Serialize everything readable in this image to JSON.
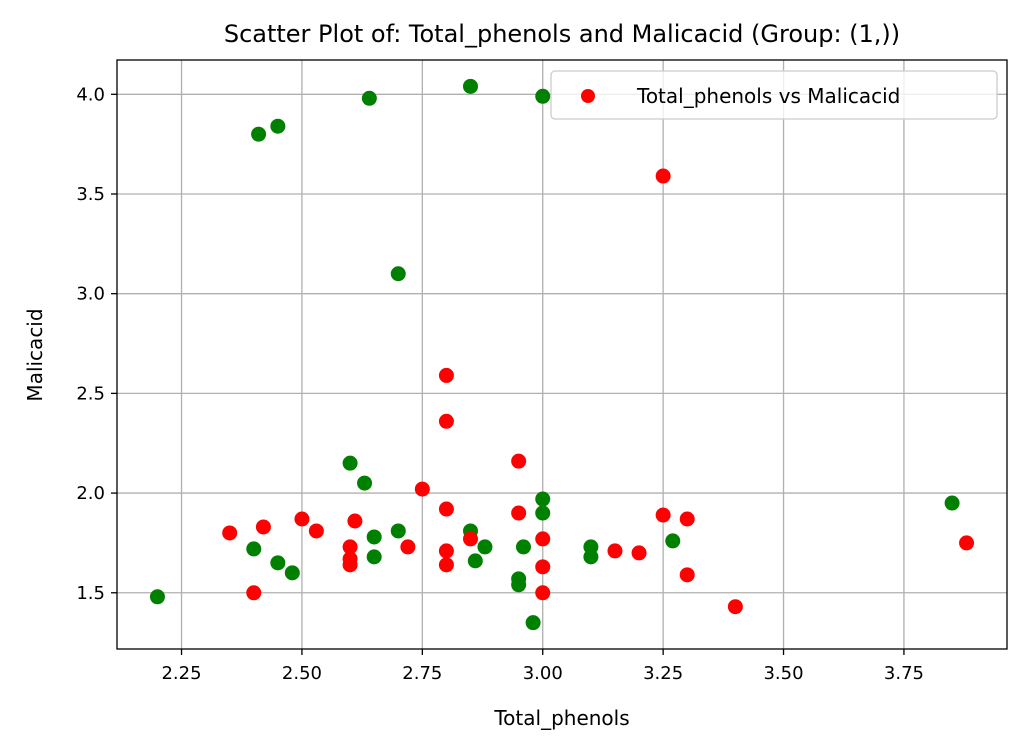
{
  "chart_data": {
    "type": "scatter",
    "title": "Scatter Plot of: Total_phenols and Malicacid (Group: (1,))",
    "xlabel": "Total_phenols",
    "ylabel": "Malicacid",
    "xlim": [
      2.116,
      3.964
    ],
    "ylim": [
      1.218,
      4.172
    ],
    "xticks": [
      "2.25",
      "2.50",
      "2.75",
      "3.00",
      "3.25",
      "3.50",
      "3.75"
    ],
    "xtick_values": [
      2.25,
      2.5,
      2.75,
      3.0,
      3.25,
      3.5,
      3.75
    ],
    "yticks": [
      "1.5",
      "2.0",
      "2.5",
      "3.0",
      "3.5",
      "4.0"
    ],
    "ytick_values": [
      1.5,
      2.0,
      2.5,
      3.0,
      3.5,
      4.0
    ],
    "grid": true,
    "legend": {
      "position": "top-right",
      "entries": [
        "Total_phenols vs Malicacid"
      ]
    },
    "series": [
      {
        "color": "#008000",
        "points": [
          [
            2.2,
            1.48
          ],
          [
            2.4,
            1.72
          ],
          [
            2.41,
            3.8
          ],
          [
            2.45,
            3.84
          ],
          [
            2.45,
            1.65
          ],
          [
            2.48,
            1.6
          ],
          [
            2.6,
            2.15
          ],
          [
            2.63,
            2.05
          ],
          [
            2.64,
            3.98
          ],
          [
            2.65,
            1.78
          ],
          [
            2.65,
            1.68
          ],
          [
            2.7,
            3.1
          ],
          [
            2.7,
            1.81
          ],
          [
            2.85,
            4.04
          ],
          [
            2.85,
            1.81
          ],
          [
            2.86,
            1.66
          ],
          [
            2.88,
            1.73
          ],
          [
            2.95,
            1.57
          ],
          [
            2.95,
            1.54
          ],
          [
            2.96,
            1.73
          ],
          [
            2.98,
            1.35
          ],
          [
            3.0,
            3.99
          ],
          [
            3.0,
            1.97
          ],
          [
            3.0,
            1.9
          ],
          [
            3.1,
            1.73
          ],
          [
            3.1,
            1.68
          ],
          [
            3.27,
            1.76
          ],
          [
            3.85,
            1.95
          ]
        ]
      },
      {
        "name": "Total_phenols vs Malicacid",
        "color": "#ff0000",
        "points": [
          [
            2.35,
            1.8
          ],
          [
            2.4,
            1.5
          ],
          [
            2.42,
            1.83
          ],
          [
            2.5,
            1.87
          ],
          [
            2.53,
            1.81
          ],
          [
            2.6,
            1.73
          ],
          [
            2.6,
            1.67
          ],
          [
            2.6,
            1.64
          ],
          [
            2.61,
            1.86
          ],
          [
            2.72,
            1.73
          ],
          [
            2.75,
            2.02
          ],
          [
            2.8,
            2.59
          ],
          [
            2.8,
            2.36
          ],
          [
            2.8,
            1.92
          ],
          [
            2.8,
            1.71
          ],
          [
            2.8,
            1.64
          ],
          [
            2.85,
            1.77
          ],
          [
            2.95,
            2.16
          ],
          [
            2.95,
            1.9
          ],
          [
            3.0,
            1.77
          ],
          [
            3.0,
            1.63
          ],
          [
            3.0,
            1.5
          ],
          [
            3.15,
            1.71
          ],
          [
            3.2,
            1.7
          ],
          [
            3.25,
            3.59
          ],
          [
            3.25,
            1.89
          ],
          [
            3.3,
            1.87
          ],
          [
            3.3,
            1.59
          ],
          [
            3.4,
            1.43
          ],
          [
            3.88,
            1.75
          ]
        ]
      }
    ]
  }
}
